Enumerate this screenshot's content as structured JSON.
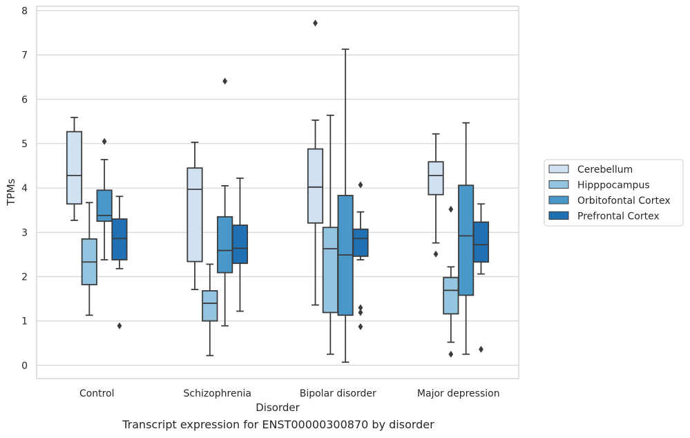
{
  "chart_data": {
    "type": "box",
    "title": "",
    "xlabel": "Disorder",
    "ylabel": "TPMs",
    "ylim": [
      -0.3,
      8.1
    ],
    "yticks": [
      0,
      1,
      2,
      3,
      4,
      5,
      6,
      7,
      8
    ],
    "grid": "horizontal",
    "legend_position": "right",
    "categories": [
      "Control",
      "Schizophrenia",
      "Bipolar disorder",
      "Major depression"
    ],
    "series": [
      {
        "name": "Cerebellum",
        "color": "#d0e1f2",
        "boxes": [
          {
            "whisker_low": 3.27,
            "q1": 3.64,
            "median": 4.28,
            "q3": 5.27,
            "whisker_high": 5.59,
            "outliers": []
          },
          {
            "whisker_low": 1.71,
            "q1": 2.34,
            "median": 3.97,
            "q3": 4.45,
            "whisker_high": 5.03,
            "outliers": []
          },
          {
            "whisker_low": 1.36,
            "q1": 3.21,
            "median": 4.02,
            "q3": 4.88,
            "whisker_high": 5.53,
            "outliers": [
              7.72
            ]
          },
          {
            "whisker_low": 2.76,
            "q1": 3.85,
            "median": 4.28,
            "q3": 4.59,
            "whisker_high": 5.22,
            "outliers": [
              2.51
            ]
          }
        ]
      },
      {
        "name": "Hipppocampus",
        "color": "#94c4df",
        "boxes": [
          {
            "whisker_low": 1.13,
            "q1": 1.82,
            "median": 2.33,
            "q3": 2.85,
            "whisker_high": 3.67,
            "outliers": []
          },
          {
            "whisker_low": 0.22,
            "q1": 1.0,
            "median": 1.4,
            "q3": 1.68,
            "whisker_high": 2.28,
            "outliers": []
          },
          {
            "whisker_low": 0.25,
            "q1": 1.19,
            "median": 2.63,
            "q3": 3.11,
            "whisker_high": 5.64,
            "outliers": []
          },
          {
            "whisker_low": 0.52,
            "q1": 1.16,
            "median": 1.69,
            "q3": 1.98,
            "whisker_high": 2.22,
            "outliers": [
              3.52,
              0.25
            ]
          }
        ]
      },
      {
        "name": "Orbitofontal Cortex",
        "color": "#4a98c9",
        "boxes": [
          {
            "whisker_low": 2.38,
            "q1": 3.25,
            "median": 3.38,
            "q3": 3.95,
            "whisker_high": 4.64,
            "outliers": [
              5.05
            ]
          },
          {
            "whisker_low": 0.89,
            "q1": 2.09,
            "median": 2.59,
            "q3": 3.35,
            "whisker_high": 4.05,
            "outliers": [
              6.41
            ]
          },
          {
            "whisker_low": 0.07,
            "q1": 1.13,
            "median": 2.49,
            "q3": 3.83,
            "whisker_high": 7.13,
            "outliers": []
          },
          {
            "whisker_low": 0.25,
            "q1": 1.58,
            "median": 2.92,
            "q3": 4.06,
            "whisker_high": 5.47,
            "outliers": []
          }
        ]
      },
      {
        "name": "Prefrontal Cortex",
        "color": "#2070b4",
        "boxes": [
          {
            "whisker_low": 2.18,
            "q1": 2.38,
            "median": 2.86,
            "q3": 3.3,
            "whisker_high": 3.81,
            "outliers": [
              0.89
            ]
          },
          {
            "whisker_low": 1.22,
            "q1": 2.3,
            "median": 2.64,
            "q3": 3.16,
            "whisker_high": 4.22,
            "outliers": []
          },
          {
            "whisker_low": 2.38,
            "q1": 2.46,
            "median": 2.86,
            "q3": 3.07,
            "whisker_high": 3.46,
            "outliers": [
              4.07,
              1.3,
              1.19,
              0.87
            ]
          },
          {
            "whisker_low": 2.06,
            "q1": 2.33,
            "median": 2.72,
            "q3": 3.23,
            "whisker_high": 3.64,
            "outliers": [
              0.36
            ]
          }
        ]
      }
    ]
  },
  "caption": "Transcript expression for ENST00000300870 by disorder"
}
